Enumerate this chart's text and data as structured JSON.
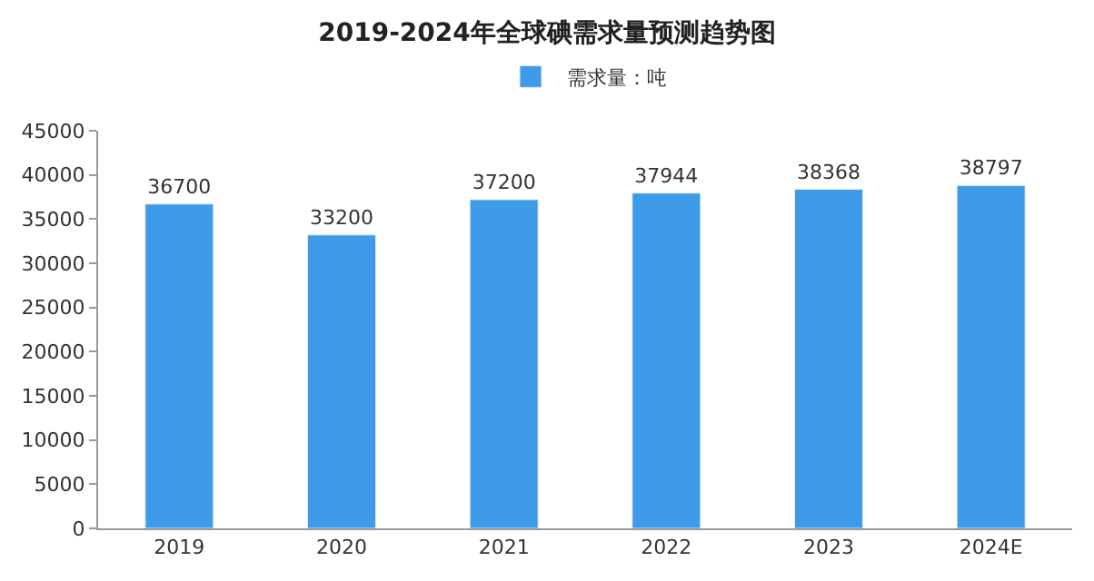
{
  "chart_data": {
    "type": "bar",
    "title": "2019-2024年全球碘需求量预测趋势图",
    "categories": [
      "2019",
      "2020",
      "2021",
      "2022",
      "2023",
      "2024E"
    ],
    "series": [
      {
        "name": "需求量：吨",
        "color": "#3d9be9",
        "values": [
          36700,
          33200,
          37200,
          37944,
          38368,
          38797
        ]
      }
    ],
    "ylim": [
      0,
      45000
    ],
    "yticks": [
      0,
      5000,
      10000,
      15000,
      20000,
      25000,
      30000,
      35000,
      40000,
      45000
    ],
    "data_labels": true,
    "legend": "top"
  }
}
